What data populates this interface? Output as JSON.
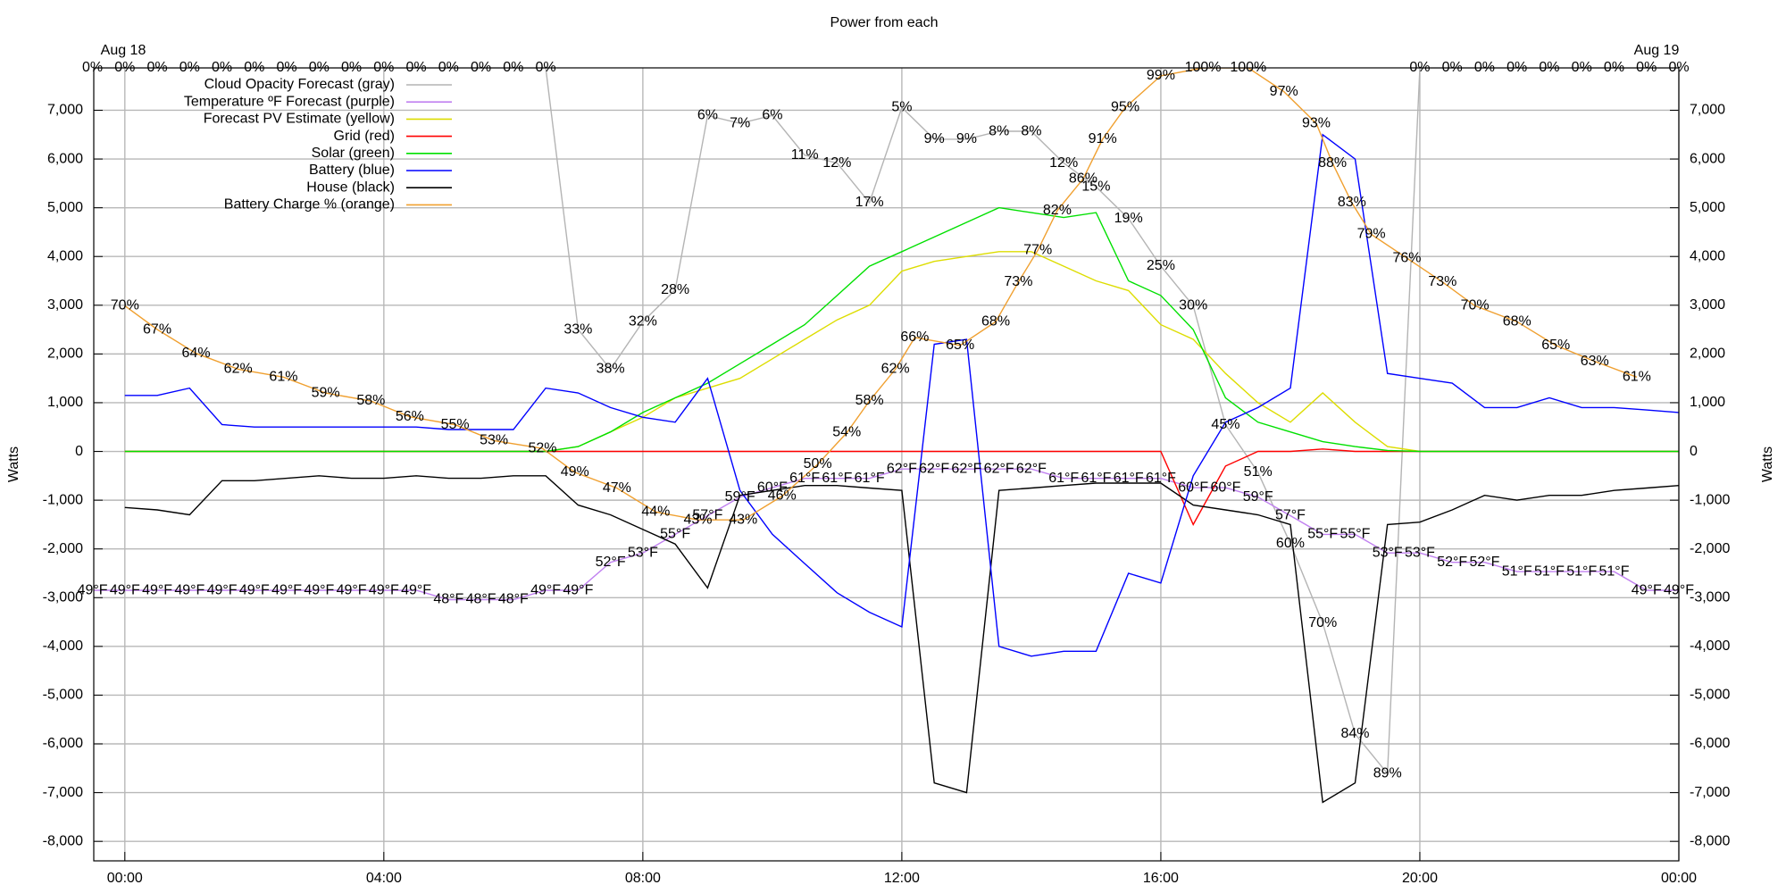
{
  "chart_data": {
    "type": "line",
    "title": "Power from each",
    "y_label": "Watts",
    "y2_label": "Watts",
    "date_labels": [
      "Aug 18",
      "Aug 19"
    ],
    "xlim": [
      -0.48,
      24
    ],
    "xticks": [
      {
        "value": 0,
        "label": "00:00"
      },
      {
        "value": 4,
        "label": "04:00"
      },
      {
        "value": 8,
        "label": "08:00"
      },
      {
        "value": 12,
        "label": "12:00"
      },
      {
        "value": 16,
        "label": "16:00"
      },
      {
        "value": 20,
        "label": "20:00"
      },
      {
        "value": 24,
        "label": "00:00"
      }
    ],
    "ylim": [
      -8400,
      7870
    ],
    "yticks": [
      {
        "value": -8000,
        "label": "-8,000"
      },
      {
        "value": -7000,
        "label": "-7,000"
      },
      {
        "value": -6000,
        "label": "-6,000"
      },
      {
        "value": -5000,
        "label": "-5,000"
      },
      {
        "value": -4000,
        "label": "-4,000"
      },
      {
        "value": -3000,
        "label": "-3,000"
      },
      {
        "value": -2000,
        "label": "-2,000"
      },
      {
        "value": -1000,
        "label": "-1,000"
      },
      0,
      {
        "value": 1000,
        "label": "1,000"
      },
      {
        "value": 2000,
        "label": "2,000"
      },
      {
        "value": 3000,
        "label": "3,000"
      },
      {
        "value": 4000,
        "label": "4,000"
      },
      {
        "value": 5000,
        "label": "5,000"
      },
      {
        "value": 6000,
        "label": "6,000"
      },
      {
        "value": 7000,
        "label": "7,000"
      }
    ],
    "y2lim": [
      0,
      100
    ],
    "y3lim": [
      20,
      105
    ],
    "y4lim": [
      100,
      0
    ],
    "grid": true,
    "legend": "upper left",
    "x": [
      0,
      0.5,
      1,
      1.5,
      2,
      2.5,
      3,
      3.5,
      4,
      4.5,
      5,
      5.5,
      6,
      6.5,
      7,
      7.5,
      8,
      8.5,
      9,
      9.5,
      10,
      10.5,
      11,
      11.5,
      12,
      12.5,
      13,
      13.5,
      14,
      14.5,
      15,
      15.5,
      16,
      16.5,
      17,
      17.5,
      18,
      18.5,
      19,
      19.5,
      20,
      20.5,
      21,
      21.5,
      22,
      22.5,
      23,
      23.5,
      24
    ],
    "series": [
      {
        "name": "Cloud Opacity Forecast (gray)",
        "color": "#b4b4b4",
        "label_color": "#a8a8a8",
        "axis": "y4",
        "x": [
          -0.5,
          0,
          0.5,
          1,
          1.5,
          2,
          2.5,
          3,
          3.5,
          4,
          4.5,
          5,
          5.5,
          6,
          6.5,
          7,
          7.5,
          8,
          8.5,
          9,
          9.5,
          10,
          10.5,
          11,
          11.5,
          12,
          12.5,
          13,
          13.5,
          14,
          14.5,
          15,
          15.5,
          16,
          16.5,
          17,
          17.5,
          18,
          18.5,
          19,
          19.5,
          20,
          20.5,
          21,
          21.5,
          22,
          22.5,
          23,
          23.5,
          24
        ],
        "values": [
          0,
          0,
          0,
          0,
          0,
          0,
          0,
          0,
          0,
          0,
          0,
          0,
          0,
          0,
          0,
          33,
          38,
          32,
          28,
          6,
          7,
          6,
          11,
          12,
          17,
          5,
          9,
          9,
          8,
          8,
          12,
          15,
          19,
          25,
          30,
          45,
          51,
          60,
          70,
          84,
          89,
          0,
          0,
          0,
          0,
          0,
          0,
          0,
          0,
          0
        ],
        "value_labels": [
          "0%",
          "0%",
          "0%",
          "0%",
          "0%",
          "0%",
          "0%",
          "0%",
          "0%",
          "0%",
          "0%",
          "0%",
          "0%",
          "0%",
          "0%",
          "33%",
          "38%",
          "32%",
          "28%",
          "6%",
          "7%",
          "6%",
          "11%",
          "12%",
          "17%",
          "5%",
          "9%",
          "9%",
          "8%",
          "8%",
          "12%",
          "15%",
          "19%",
          "25%",
          "30%",
          "45%",
          "51%",
          "60%",
          "70%",
          "84%",
          "89%",
          "0%",
          "0%",
          "0%",
          "0%",
          "0%",
          "0%",
          "0%",
          "0%",
          "0%"
        ]
      },
      {
        "name": "Temperature ºF Forecast (purple)",
        "color": "#c080f0",
        "label_color": "#b06ee0",
        "axis": "y3",
        "x": [
          -0.5,
          0,
          0.5,
          1,
          1.5,
          2,
          2.5,
          3,
          3.5,
          4,
          4.5,
          5,
          5.5,
          6,
          6.5,
          7,
          7.5,
          8,
          8.5,
          9,
          9.5,
          10,
          10.5,
          11,
          11.5,
          12,
          12.5,
          13,
          13.5,
          14,
          14.5,
          15,
          15.5,
          16,
          16.5,
          17,
          17.5,
          18,
          18.5,
          19,
          19.5,
          20,
          20.5,
          21,
          21.5,
          22,
          22.5,
          23,
          23.5,
          24
        ],
        "values": [
          49,
          49,
          49,
          49,
          49,
          49,
          49,
          49,
          49,
          49,
          49,
          48,
          48,
          48,
          49,
          49,
          52,
          53,
          55,
          57,
          59,
          60,
          61,
          61,
          61,
          62,
          62,
          62,
          62,
          62,
          61,
          61,
          61,
          61,
          60,
          60,
          59,
          57,
          55,
          55,
          53,
          53,
          52,
          52,
          51,
          51,
          51,
          51,
          49,
          49
        ],
        "value_labels": [
          "49°F",
          "49°F",
          "49°F",
          "49°F",
          "49°F",
          "49°F",
          "49°F",
          "49°F",
          "49°F",
          "49°F",
          "49°F",
          "48°F",
          "48°F",
          "48°F",
          "49°F",
          "49°F",
          "52°F",
          "53°F",
          "55°F",
          "57°F",
          "59°F",
          "60°F",
          "61°F",
          "61°F",
          "61°F",
          "62°F",
          "62°F",
          "62°F",
          "62°F",
          "62°F",
          "61°F",
          "61°F",
          "61°F",
          "61°F",
          "60°F",
          "60°F",
          "59°F",
          "57°F",
          "55°F",
          "55°F",
          "53°F",
          "53°F",
          "52°F",
          "52°F",
          "51°F",
          "51°F",
          "51°F",
          "51°F",
          "49°F",
          "49°F"
        ]
      },
      {
        "name": "Forecast PV Estimate (yellow)",
        "color": "#dddd00",
        "values": [
          0,
          0,
          0,
          0,
          0,
          0,
          0,
          0,
          0,
          0,
          0,
          0,
          0,
          0,
          100,
          400,
          700,
          1100,
          1300,
          1500,
          1900,
          2300,
          2700,
          3000,
          3700,
          3900,
          4000,
          4100,
          4100,
          3800,
          3500,
          3300,
          2600,
          2300,
          1600,
          1000,
          600,
          1200,
          600,
          100,
          0,
          0,
          0,
          0,
          0,
          0,
          0,
          0,
          0
        ]
      },
      {
        "name": "Grid (red)",
        "color": "#ff0000",
        "values": [
          0,
          0,
          0,
          0,
          0,
          0,
          0,
          0,
          0,
          0,
          0,
          0,
          0,
          0,
          0,
          0,
          0,
          0,
          0,
          0,
          0,
          0,
          0,
          0,
          0,
          0,
          0,
          0,
          0,
          0,
          0,
          0,
          0,
          -1500,
          -300,
          0,
          0,
          50,
          0,
          0,
          0,
          0,
          0,
          0,
          0,
          0,
          0,
          0,
          0
        ]
      },
      {
        "name": "Solar (green)",
        "color": "#00e000",
        "values": [
          0,
          0,
          0,
          0,
          0,
          0,
          0,
          0,
          0,
          0,
          0,
          0,
          0,
          0,
          100,
          400,
          800,
          1100,
          1400,
          1800,
          2200,
          2600,
          3200,
          3800,
          4100,
          4400,
          4700,
          5000,
          4900,
          4800,
          4900,
          3500,
          3200,
          2500,
          1100,
          600,
          400,
          200,
          100,
          20,
          0,
          0,
          0,
          0,
          0,
          0,
          0,
          0,
          0
        ]
      },
      {
        "name": "Battery (blue)",
        "color": "#0000ff",
        "values": [
          1150,
          1150,
          1300,
          550,
          500,
          500,
          500,
          500,
          500,
          500,
          450,
          450,
          450,
          1300,
          1200,
          900,
          700,
          600,
          1500,
          -800,
          -1700,
          -2300,
          -2900,
          -3300,
          -3600,
          2200,
          2300,
          -4000,
          -4200,
          -4100,
          -4100,
          -2500,
          -2700,
          -500,
          600,
          900,
          1300,
          6500,
          6000,
          1600,
          1500,
          1400,
          900,
          900,
          1100,
          900,
          900,
          850,
          800
        ]
      },
      {
        "name": "House (black)",
        "color": "#000000",
        "values": [
          -1150,
          -1200,
          -1300,
          -600,
          -600,
          -550,
          -500,
          -550,
          -550,
          -500,
          -550,
          -550,
          -500,
          -500,
          -1100,
          -1300,
          -1600,
          -1900,
          -2800,
          -900,
          -800,
          -700,
          -700,
          -750,
          -800,
          -6800,
          -7000,
          -800,
          -750,
          -700,
          -650,
          -650,
          -650,
          -1100,
          -1200,
          -1300,
          -1500,
          -7200,
          -6800,
          -1500,
          -1450,
          -1200,
          -900,
          -1000,
          -900,
          -900,
          -800,
          -750,
          -700
        ]
      },
      {
        "name": "Battery Charge % (orange)",
        "color": "#f0a030",
        "label_color": "#8b4a10",
        "axis": "y2",
        "x": [
          0,
          0.5,
          1.1,
          1.75,
          2.45,
          3.1,
          3.8,
          4.4,
          5.1,
          5.7,
          6.45,
          6.95,
          7.6,
          8.2,
          8.85,
          9.55,
          10.15,
          10.7,
          11.15,
          11.5,
          11.9,
          12.2,
          12.9,
          13.45,
          13.8,
          14.1,
          14.4,
          14.8,
          15.1,
          15.45,
          16,
          16.65,
          17.35,
          17.9,
          18.4,
          18.65,
          18.95,
          19.25,
          19.8,
          20.35,
          20.85,
          21.5,
          22.1,
          22.7,
          23.35
        ],
        "values": [
          70,
          67,
          64,
          62,
          61,
          59,
          58,
          56,
          55,
          53,
          52,
          49,
          47,
          44,
          43,
          43,
          46,
          50,
          54,
          58,
          62,
          66,
          65,
          68,
          73,
          77,
          82,
          86,
          91,
          95,
          99,
          100,
          100,
          97,
          93,
          88,
          83,
          79,
          76,
          73,
          70,
          68,
          65,
          63,
          61
        ],
        "value_labels": [
          "70%",
          "67%",
          "64%",
          "62%",
          "61%",
          "59%",
          "58%",
          "56%",
          "55%",
          "53%",
          "52%",
          "49%",
          "47%",
          "44%",
          "43%",
          "43%",
          "46%",
          "50%",
          "54%",
          "58%",
          "62%",
          "66%",
          "65%",
          "68%",
          "73%",
          "77%",
          "82%",
          "86%",
          "91%",
          "95%",
          "99%",
          "100%",
          "100%",
          "97%",
          "93%",
          "88%",
          "83%",
          "79%",
          "76%",
          "73%",
          "70%",
          "68%",
          "65%",
          "63%",
          "61%"
        ]
      }
    ]
  }
}
